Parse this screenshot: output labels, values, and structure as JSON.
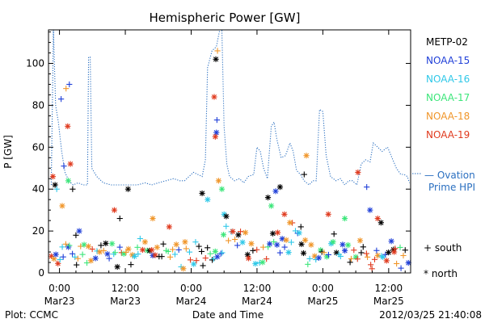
{
  "chart_data": {
    "type": "scatter",
    "title": "Hemispheric Power [GW]",
    "xlabel": "Date and Time",
    "ylabel": "P [GW]",
    "ylim": [
      0,
      116
    ],
    "yticks": [
      0,
      20,
      40,
      60,
      80,
      100
    ],
    "x_unit": "hours since 2012-03-23 00:00 UT",
    "xlim": [
      -2,
      64
    ],
    "xticks": [
      {
        "x": 0,
        "time": "0:00",
        "date": "Mar23"
      },
      {
        "x": 12,
        "time": "12:00",
        "date": "Mar23"
      },
      {
        "x": 24,
        "time": "0:00",
        "date": "Mar24"
      },
      {
        "x": 36,
        "time": "12:00",
        "date": "Mar24"
      },
      {
        "x": 48,
        "time": "0:00",
        "date": "Mar25"
      },
      {
        "x": 60,
        "time": "12:00",
        "date": "Mar25"
      }
    ],
    "grid": false,
    "legend_position": "right",
    "series": [
      {
        "name": "METP-02",
        "color": "#000000"
      },
      {
        "name": "NOAA-15",
        "color": "#1f3fd8"
      },
      {
        "name": "NOAA-16",
        "color": "#2fc8e8"
      },
      {
        "name": "NOAA-17",
        "color": "#3ce67a"
      },
      {
        "name": "NOAA-18",
        "color": "#f0962a"
      },
      {
        "name": "NOAA-19",
        "color": "#e03a1e"
      }
    ],
    "ovation_line": {
      "name": "Ovation Prime HPI",
      "color": "#2a6fc0",
      "style": "dotted",
      "points": [
        [
          -1.5,
          42
        ],
        [
          -1.1,
          116
        ],
        [
          -0.7,
          80
        ],
        [
          -0.2,
          72
        ],
        [
          0.4,
          58
        ],
        [
          1,
          48
        ],
        [
          1.7,
          44
        ],
        [
          2.5,
          42
        ],
        [
          3.4,
          43
        ],
        [
          4.3,
          42
        ],
        [
          5.1,
          42
        ],
        [
          5.3,
          103
        ],
        [
          5.6,
          103
        ],
        [
          5.9,
          50
        ],
        [
          6.8,
          46
        ],
        [
          8,
          43
        ],
        [
          9.4,
          42
        ],
        [
          11,
          42
        ],
        [
          12.7,
          42
        ],
        [
          14.2,
          42
        ],
        [
          15.6,
          43
        ],
        [
          16.8,
          42
        ],
        [
          18,
          43
        ],
        [
          19.4,
          44
        ],
        [
          20.8,
          45
        ],
        [
          21.9,
          44
        ],
        [
          22.8,
          44
        ],
        [
          23.6,
          46
        ],
        [
          24.4,
          48
        ],
        [
          25.2,
          47
        ],
        [
          26,
          46
        ],
        [
          26.6,
          54
        ],
        [
          27,
          98
        ],
        [
          27.8,
          106
        ],
        [
          28.6,
          108
        ],
        [
          29.2,
          116
        ],
        [
          29.6,
          116
        ],
        [
          30,
          70
        ],
        [
          30.5,
          52
        ],
        [
          31,
          46
        ],
        [
          31.9,
          44
        ],
        [
          32.8,
          45
        ],
        [
          33.6,
          43
        ],
        [
          34.4,
          46
        ],
        [
          35.4,
          47
        ],
        [
          36,
          60
        ],
        [
          36.6,
          58
        ],
        [
          37.2,
          50
        ],
        [
          37.9,
          45
        ],
        [
          38.6,
          70
        ],
        [
          39.1,
          72
        ],
        [
          39.6,
          64
        ],
        [
          40.4,
          55
        ],
        [
          41.2,
          56
        ],
        [
          42,
          62
        ],
        [
          42.6,
          58
        ],
        [
          43.2,
          49
        ],
        [
          43.9,
          47
        ],
        [
          44.6,
          44
        ],
        [
          45.5,
          42
        ],
        [
          46.2,
          44
        ],
        [
          46.8,
          44
        ],
        [
          47.4,
          78
        ],
        [
          48,
          77
        ],
        [
          48.6,
          56
        ],
        [
          49.4,
          46
        ],
        [
          50.4,
          44
        ],
        [
          51.2,
          45
        ],
        [
          52,
          42
        ],
        [
          52.7,
          44
        ],
        [
          53.4,
          44
        ],
        [
          54.2,
          42
        ],
        [
          55,
          52
        ],
        [
          55.8,
          54
        ],
        [
          56.6,
          53
        ],
        [
          57.2,
          62
        ],
        [
          58,
          60
        ],
        [
          58.8,
          58
        ],
        [
          59.8,
          60
        ],
        [
          60.6,
          55
        ],
        [
          61.4,
          50
        ],
        [
          62.2,
          47
        ],
        [
          62.8,
          47
        ],
        [
          63.4,
          46
        ],
        [
          63.8,
          43
        ]
      ]
    },
    "point_glyphs": [
      {
        "name": "south",
        "symbol": "+"
      },
      {
        "name": "north",
        "symbol": "*"
      }
    ]
  },
  "legend_ovation_line1": "— Ovation",
  "legend_ovation_line2": "Prime HPI",
  "legend_south": "+ south",
  "legend_north": "* north",
  "footer": {
    "source": "Plot: CCMC",
    "timestamp": "2012/03/25 21:40:08"
  }
}
